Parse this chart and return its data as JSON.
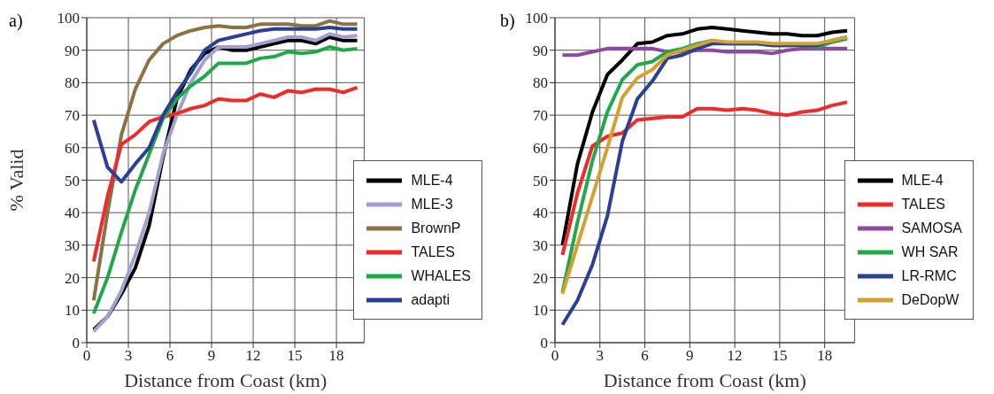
{
  "chart_data": [
    {
      "type": "line",
      "title": "a)",
      "xlabel": "Distance from Coast (km)",
      "ylabel": "% Valid",
      "x": [
        0.5,
        1.5,
        2.5,
        3.5,
        4.5,
        5.5,
        6.5,
        7.5,
        8.5,
        9.5,
        10.5,
        11.5,
        12.5,
        13.5,
        14.5,
        15.5,
        16.5,
        17.5,
        18.5,
        19.5
      ],
      "series": [
        {
          "name": "MLE-4",
          "color": "#000000",
          "values": [
            4,
            8,
            15,
            23,
            36,
            57,
            75,
            84,
            89,
            91,
            90,
            90,
            91,
            92,
            93,
            93,
            92,
            94,
            93,
            93
          ]
        },
        {
          "name": "MLE-3",
          "color": "#a0a0d0",
          "values": [
            3.5,
            8,
            16,
            27,
            40,
            58,
            70,
            80,
            87,
            91,
            91,
            91,
            92,
            93,
            94,
            94,
            93,
            95,
            94,
            94.5
          ]
        },
        {
          "name": "BrownP",
          "color": "#8b7143",
          "values": [
            13,
            40,
            64,
            78,
            87,
            92,
            94.5,
            96,
            97,
            97.5,
            97,
            97,
            98,
            98,
            98,
            97.5,
            97.5,
            99,
            98,
            98
          ]
        },
        {
          "name": "TALES",
          "color": "#ee2a2a",
          "values": [
            25,
            45,
            61,
            64,
            68,
            69.5,
            70.5,
            72,
            73,
            75,
            74.5,
            74.5,
            76.5,
            75.5,
            77.5,
            77,
            78,
            78,
            77,
            78.5
          ]
        },
        {
          "name": "WHALES",
          "color": "#1fa84a",
          "values": [
            9,
            20,
            34,
            47,
            58,
            69,
            75,
            79,
            82,
            86,
            86,
            86,
            87.5,
            88,
            89.5,
            89,
            89.5,
            91,
            90,
            90.5
          ]
        },
        {
          "name": "adapti",
          "color": "#2b3f94",
          "values": [
            68.5,
            54,
            49.5,
            55,
            60,
            70,
            77,
            83,
            90,
            93,
            94,
            95,
            96,
            96.5,
            96.5,
            96.5,
            96.5,
            97,
            96.5,
            96.5
          ]
        }
      ],
      "xlim": [
        0,
        20
      ],
      "xticks": [
        0,
        3,
        6,
        9,
        12,
        15,
        18
      ],
      "ylim": [
        0,
        100
      ],
      "yticks": [
        0,
        10,
        20,
        30,
        40,
        50,
        60,
        70,
        80,
        90,
        100
      ],
      "grid": true,
      "legend": "bottom right",
      "marker": "none",
      "line_style": "solid"
    },
    {
      "type": "line",
      "title": "b)",
      "xlabel": "Distance from Coast (km)",
      "x": [
        0.5,
        1.5,
        2.5,
        3.5,
        4.5,
        5.5,
        6.5,
        7.5,
        8.5,
        9.5,
        10.5,
        11.5,
        12.5,
        13.5,
        14.5,
        15.5,
        16.5,
        17.5,
        18.5,
        19.5
      ],
      "series": [
        {
          "name": "MLE-4",
          "color": "#000000",
          "values": [
            30,
            55,
            71,
            82.5,
            87,
            92,
            92.5,
            94.5,
            95,
            96.5,
            97,
            96.5,
            96,
            95.5,
            95,
            95,
            94.5,
            94.5,
            95.5,
            96
          ]
        },
        {
          "name": "TALES",
          "color": "#ee2a2a",
          "values": [
            27,
            46,
            60.5,
            63.5,
            64.5,
            68.5,
            69,
            69.5,
            69.5,
            72,
            72,
            71.5,
            72,
            71.5,
            70.5,
            70,
            71,
            71.5,
            73,
            74
          ]
        },
        {
          "name": "SAMOSA",
          "color": "#8b4aa0",
          "values": [
            88.5,
            88.5,
            89.5,
            90.5,
            90.5,
            90.5,
            90.5,
            89.5,
            89.5,
            90,
            90,
            89.5,
            89.5,
            89.5,
            89,
            90,
            90.5,
            90.5,
            90.5,
            90.5
          ]
        },
        {
          "name": "WH SAR",
          "color": "#22a84a",
          "values": [
            15.5,
            37,
            56,
            71,
            81,
            85.5,
            86.5,
            89.5,
            90.5,
            92,
            93,
            92,
            92,
            92,
            91.5,
            91.5,
            91.5,
            91,
            92.5,
            93.5
          ]
        },
        {
          "name": "LR-RMC",
          "color": "#2b3f94",
          "values": [
            5.5,
            13,
            24,
            39,
            62,
            75,
            80.5,
            87.5,
            88.5,
            90.5,
            92,
            92,
            92,
            92,
            91.5,
            91.5,
            91.5,
            91.5,
            93,
            94
          ]
        },
        {
          "name": "DeDopW",
          "color": "#d4a030",
          "values": [
            15,
            30,
            45,
            60,
            75.5,
            81.5,
            84,
            88.5,
            90,
            91.5,
            93,
            92.5,
            92.5,
            92.5,
            92,
            92,
            92,
            92,
            93,
            94
          ]
        }
      ],
      "xlim": [
        0,
        20
      ],
      "xticks": [
        0,
        3,
        6,
        9,
        12,
        15,
        18
      ],
      "ylim": [
        0,
        100
      ],
      "yticks": [
        0,
        10,
        20,
        30,
        40,
        50,
        60,
        70,
        80,
        90,
        100
      ],
      "grid": true,
      "legend": "bottom right",
      "marker": "none",
      "line_style": "solid"
    }
  ]
}
